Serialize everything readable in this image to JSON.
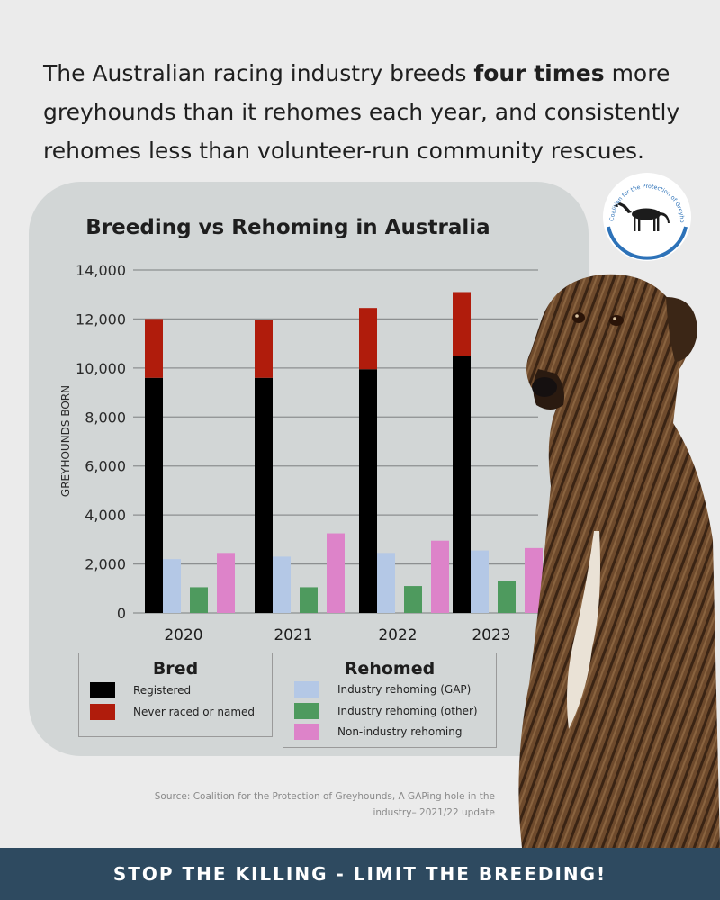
{
  "headline": {
    "part1": "The Australian racing industry breeds ",
    "bold": "four times",
    "part2": " more greyhounds than it rehomes each year, and consistently rehomes less than volunteer-run community rescues."
  },
  "logo": {
    "text": "Coalition for the Protection of Greyhounds",
    "icon": "greyhound-silhouette-icon"
  },
  "chart_data": {
    "type": "bar",
    "title": "Breeding vs Rehoming in Australia",
    "ylabel": "GREYHOUNDS BORN",
    "xlabel": "",
    "ylim": [
      0,
      14000
    ],
    "yticks": [
      "0",
      "2,000",
      "4,000",
      "6,000",
      "8,000",
      "10,000",
      "12,000",
      "14,000"
    ],
    "yticks_values": [
      0,
      2000,
      4000,
      6000,
      8000,
      10000,
      12000,
      14000
    ],
    "grid": true,
    "categories": [
      "2020",
      "2021",
      "2022",
      "2023"
    ],
    "stacked_bar": {
      "series": [
        {
          "name": "Registered",
          "color": "#000000",
          "values": [
            9600,
            9600,
            9950,
            10500
          ]
        },
        {
          "name": "Never raced or named",
          "color": "#b01c0c",
          "values": [
            2400,
            2350,
            2500,
            2600
          ]
        }
      ]
    },
    "side_bars": [
      {
        "name": "Industry rehoming (GAP)",
        "color": "#b4c8e6",
        "values": [
          2200,
          2300,
          2450,
          2550
        ]
      },
      {
        "name": "Industry rehoming (other)",
        "color": "#4e9a5e",
        "values": [
          1050,
          1050,
          1100,
          1300
        ]
      },
      {
        "name": "Non-industry rehoming",
        "color": "#dd83c9",
        "values": [
          2450,
          3250,
          2950,
          2650
        ]
      }
    ],
    "legend": {
      "bred_title": "Bred",
      "rehomed_title": "Rehomed"
    }
  },
  "source": {
    "line1": "Source:  Coalition for the Protection of Greyhounds, A GAPing hole in the",
    "line2": "industry– 2021/22 update"
  },
  "footer": {
    "text": "STOP THE KILLING - LIMIT THE BREEDING!"
  }
}
